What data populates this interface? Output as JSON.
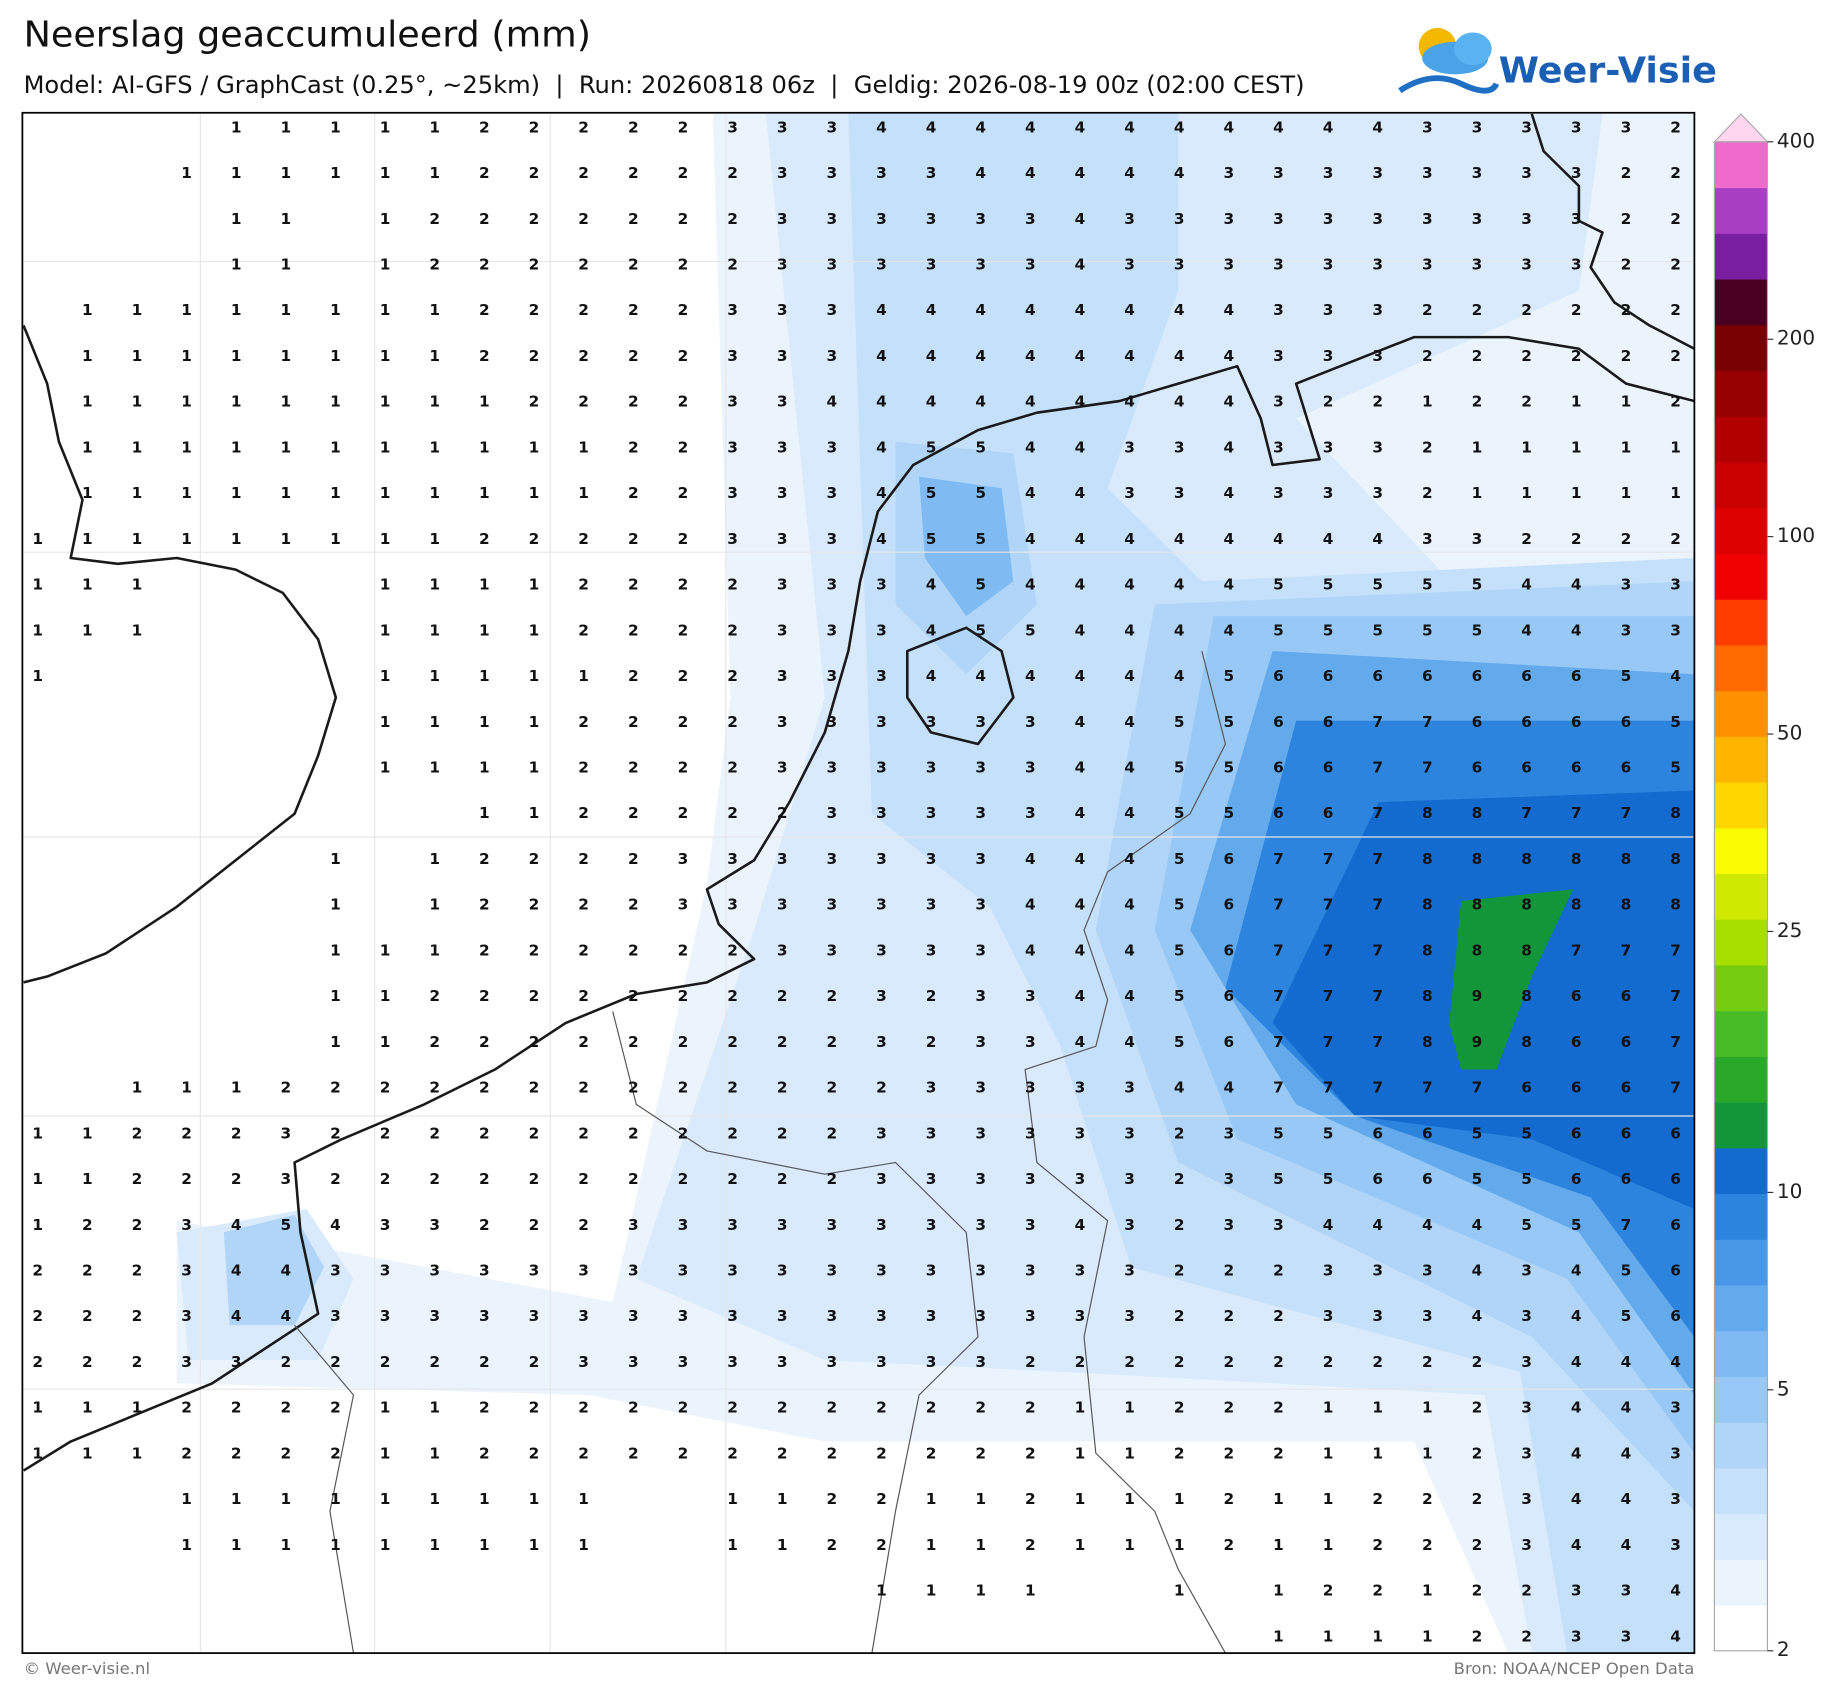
{
  "header": {
    "title": "Neerslag geaccumuleerd (mm)",
    "subtitle": "Model: AI-GFS / GraphCast (0.25°, ~25km)  |  Run: 20260818 06z  |  Geldig: 2026-08-19 00z (02:00 CEST)",
    "logo": "Weer-Visie"
  },
  "footer": {
    "left": "© Weer-visie.nl",
    "right": "Bron: NOAA/NCEP Open Data"
  },
  "colorbar": {
    "ticks": [
      2,
      5,
      10,
      25,
      50,
      100,
      200,
      400
    ],
    "lim": [
      2,
      400
    ],
    "log_scale": true,
    "colors": [
      "#ffffff",
      "#ebf4fd",
      "#d9eafc",
      "#c5e0fa",
      "#b0d5f8",
      "#98c9f6",
      "#7fbbf2",
      "#63aaed",
      "#4898e7",
      "#2c84de",
      "#136bd0",
      "#13963a",
      "#2aa82a",
      "#46bb26",
      "#74cc10",
      "#a8dd00",
      "#cfe900",
      "#fbfb00",
      "#ffd700",
      "#ffb400",
      "#ff9000",
      "#ff6a00",
      "#ff3c00",
      "#f00000",
      "#dd0000",
      "#c80000",
      "#b00000",
      "#960000",
      "#780000",
      "#4a0020",
      "#7a1ea0",
      "#a83ec2",
      "#ee6acd",
      "#ffd6f0"
    ]
  },
  "grid": {
    "rows": [
      [
        null,
        null,
        null,
        null,
        1,
        1,
        1,
        1,
        1,
        2,
        2,
        2,
        2,
        2,
        3,
        3,
        3,
        4,
        4,
        4,
        4,
        4,
        4,
        4,
        4,
        4,
        4,
        4,
        3,
        3,
        3,
        3,
        3,
        2
      ],
      [
        null,
        null,
        null,
        1,
        1,
        1,
        1,
        1,
        1,
        2,
        2,
        2,
        2,
        2,
        2,
        3,
        3,
        3,
        3,
        4,
        4,
        4,
        4,
        4,
        3,
        3,
        3,
        3,
        3,
        3,
        3,
        3,
        2,
        2
      ],
      [
        null,
        null,
        null,
        null,
        1,
        1,
        null,
        1,
        2,
        2,
        2,
        2,
        2,
        2,
        2,
        3,
        3,
        3,
        3,
        3,
        3,
        4,
        3,
        3,
        3,
        3,
        3,
        3,
        3,
        3,
        3,
        3,
        2,
        2
      ],
      [
        null,
        null,
        null,
        null,
        1,
        1,
        null,
        1,
        2,
        2,
        2,
        2,
        2,
        2,
        2,
        3,
        3,
        3,
        3,
        3,
        3,
        4,
        3,
        3,
        3,
        3,
        3,
        3,
        3,
        3,
        3,
        3,
        2,
        2
      ],
      [
        null,
        1,
        1,
        1,
        1,
        1,
        1,
        1,
        1,
        2,
        2,
        2,
        2,
        2,
        3,
        3,
        3,
        4,
        4,
        4,
        4,
        4,
        4,
        4,
        4,
        3,
        3,
        3,
        2,
        2,
        2,
        2,
        2,
        2
      ],
      [
        null,
        1,
        1,
        1,
        1,
        1,
        1,
        1,
        1,
        2,
        2,
        2,
        2,
        2,
        3,
        3,
        3,
        4,
        4,
        4,
        4,
        4,
        4,
        4,
        4,
        3,
        3,
        3,
        2,
        2,
        2,
        2,
        2,
        2
      ],
      [
        null,
        1,
        1,
        1,
        1,
        1,
        1,
        1,
        1,
        1,
        2,
        2,
        2,
        2,
        3,
        3,
        4,
        4,
        4,
        4,
        4,
        4,
        4,
        4,
        4,
        3,
        2,
        2,
        1,
        2,
        2,
        1,
        1,
        2
      ],
      [
        null,
        1,
        1,
        1,
        1,
        1,
        1,
        1,
        1,
        1,
        1,
        1,
        2,
        2,
        3,
        3,
        3,
        4,
        5,
        5,
        4,
        4,
        3,
        3,
        4,
        3,
        3,
        3,
        2,
        1,
        1,
        1,
        1,
        1
      ],
      [
        null,
        1,
        1,
        1,
        1,
        1,
        1,
        1,
        1,
        1,
        1,
        1,
        2,
        2,
        3,
        3,
        3,
        4,
        5,
        5,
        4,
        4,
        3,
        3,
        4,
        3,
        3,
        3,
        2,
        1,
        1,
        1,
        1,
        1
      ],
      [
        1,
        1,
        1,
        1,
        1,
        1,
        1,
        1,
        1,
        2,
        2,
        2,
        2,
        2,
        3,
        3,
        3,
        4,
        5,
        5,
        4,
        4,
        4,
        4,
        4,
        4,
        4,
        4,
        3,
        3,
        2,
        2,
        2,
        2
      ],
      [
        1,
        1,
        1,
        null,
        null,
        null,
        null,
        1,
        1,
        1,
        1,
        2,
        2,
        2,
        2,
        3,
        3,
        3,
        4,
        5,
        4,
        4,
        4,
        4,
        4,
        5,
        5,
        5,
        5,
        5,
        4,
        4,
        3,
        3
      ],
      [
        1,
        1,
        1,
        null,
        null,
        null,
        null,
        1,
        1,
        1,
        1,
        2,
        2,
        2,
        2,
        3,
        3,
        3,
        4,
        5,
        5,
        4,
        4,
        4,
        4,
        5,
        5,
        5,
        5,
        5,
        4,
        4,
        3,
        3
      ],
      [
        1,
        null,
        null,
        null,
        null,
        null,
        null,
        1,
        1,
        1,
        1,
        1,
        2,
        2,
        2,
        3,
        3,
        3,
        4,
        4,
        4,
        4,
        4,
        4,
        5,
        6,
        6,
        6,
        6,
        6,
        6,
        6,
        5,
        4
      ],
      [
        null,
        null,
        null,
        null,
        null,
        null,
        null,
        1,
        1,
        1,
        1,
        2,
        2,
        2,
        2,
        3,
        3,
        3,
        3,
        3,
        3,
        4,
        4,
        5,
        5,
        6,
        6,
        7,
        7,
        6,
        6,
        6,
        6,
        5
      ],
      [
        null,
        null,
        null,
        null,
        null,
        null,
        null,
        1,
        1,
        1,
        1,
        2,
        2,
        2,
        2,
        3,
        3,
        3,
        3,
        3,
        3,
        4,
        4,
        5,
        5,
        6,
        6,
        7,
        7,
        6,
        6,
        6,
        6,
        5
      ],
      [
        null,
        null,
        null,
        null,
        null,
        null,
        null,
        null,
        null,
        1,
        1,
        2,
        2,
        2,
        2,
        2,
        3,
        3,
        3,
        3,
        3,
        4,
        4,
        5,
        5,
        6,
        6,
        7,
        8,
        8,
        7,
        7,
        7,
        8
      ],
      [
        null,
        null,
        null,
        null,
        null,
        null,
        1,
        null,
        1,
        2,
        2,
        2,
        2,
        3,
        3,
        3,
        3,
        3,
        3,
        3,
        4,
        4,
        4,
        5,
        6,
        7,
        7,
        7,
        8,
        8,
        8,
        8,
        8,
        8
      ],
      [
        null,
        null,
        null,
        null,
        null,
        null,
        1,
        null,
        1,
        2,
        2,
        2,
        2,
        3,
        3,
        3,
        3,
        3,
        3,
        3,
        4,
        4,
        4,
        5,
        6,
        7,
        7,
        7,
        8,
        8,
        8,
        8,
        8,
        8
      ],
      [
        null,
        null,
        null,
        null,
        null,
        null,
        1,
        1,
        1,
        2,
        2,
        2,
        2,
        2,
        2,
        3,
        3,
        3,
        3,
        3,
        4,
        4,
        4,
        5,
        6,
        7,
        7,
        7,
        8,
        8,
        8,
        7,
        7,
        7
      ],
      [
        null,
        null,
        null,
        null,
        null,
        null,
        1,
        1,
        2,
        2,
        2,
        2,
        2,
        2,
        2,
        2,
        2,
        3,
        2,
        3,
        3,
        4,
        4,
        5,
        6,
        7,
        7,
        7,
        8,
        9,
        8,
        6,
        6,
        7
      ],
      [
        null,
        null,
        null,
        null,
        null,
        null,
        1,
        1,
        2,
        2,
        2,
        2,
        2,
        2,
        2,
        2,
        2,
        3,
        2,
        3,
        3,
        4,
        4,
        5,
        6,
        7,
        7,
        7,
        8,
        9,
        8,
        6,
        6,
        7
      ],
      [
        null,
        null,
        1,
        1,
        1,
        2,
        2,
        2,
        2,
        2,
        2,
        2,
        2,
        2,
        2,
        2,
        2,
        2,
        3,
        3,
        3,
        3,
        3,
        4,
        4,
        7,
        7,
        7,
        7,
        7,
        6,
        6,
        6,
        7
      ],
      [
        1,
        1,
        2,
        2,
        2,
        3,
        2,
        2,
        2,
        2,
        2,
        2,
        2,
        2,
        2,
        2,
        2,
        3,
        3,
        3,
        3,
        3,
        3,
        2,
        3,
        5,
        5,
        6,
        6,
        5,
        5,
        6,
        6,
        6
      ],
      [
        1,
        1,
        2,
        2,
        2,
        3,
        2,
        2,
        2,
        2,
        2,
        2,
        2,
        2,
        2,
        2,
        2,
        3,
        3,
        3,
        3,
        3,
        3,
        2,
        3,
        5,
        5,
        6,
        6,
        5,
        5,
        6,
        6,
        6
      ],
      [
        1,
        2,
        2,
        3,
        4,
        5,
        4,
        3,
        3,
        2,
        2,
        2,
        3,
        3,
        3,
        3,
        3,
        3,
        3,
        3,
        3,
        4,
        3,
        2,
        3,
        3,
        4,
        4,
        4,
        4,
        5,
        5,
        7,
        6
      ],
      [
        2,
        2,
        2,
        3,
        4,
        4,
        3,
        3,
        3,
        3,
        3,
        3,
        3,
        3,
        3,
        3,
        3,
        3,
        3,
        3,
        3,
        3,
        3,
        2,
        2,
        2,
        3,
        3,
        3,
        4,
        3,
        4,
        5,
        6
      ],
      [
        2,
        2,
        2,
        3,
        4,
        4,
        3,
        3,
        3,
        3,
        3,
        3,
        3,
        3,
        3,
        3,
        3,
        3,
        3,
        3,
        3,
        3,
        3,
        2,
        2,
        2,
        3,
        3,
        3,
        4,
        3,
        4,
        5,
        6
      ],
      [
        2,
        2,
        2,
        3,
        3,
        2,
        2,
        2,
        2,
        2,
        2,
        3,
        3,
        3,
        3,
        3,
        3,
        3,
        3,
        3,
        2,
        2,
        2,
        2,
        2,
        2,
        2,
        2,
        2,
        2,
        3,
        4,
        4,
        4
      ],
      [
        1,
        1,
        1,
        2,
        2,
        2,
        2,
        1,
        1,
        2,
        2,
        2,
        2,
        2,
        2,
        2,
        2,
        2,
        2,
        2,
        2,
        1,
        1,
        2,
        2,
        2,
        1,
        1,
        1,
        2,
        3,
        4,
        4,
        3
      ],
      [
        1,
        1,
        1,
        2,
        2,
        2,
        2,
        1,
        1,
        2,
        2,
        2,
        2,
        2,
        2,
        2,
        2,
        2,
        2,
        2,
        2,
        1,
        1,
        2,
        2,
        2,
        1,
        1,
        1,
        2,
        3,
        4,
        4,
        3
      ],
      [
        null,
        null,
        null,
        1,
        1,
        1,
        1,
        1,
        1,
        1,
        1,
        1,
        null,
        null,
        1,
        1,
        2,
        2,
        1,
        1,
        2,
        1,
        1,
        1,
        2,
        1,
        1,
        2,
        2,
        2,
        3,
        4,
        4,
        3
      ],
      [
        null,
        null,
        null,
        1,
        1,
        1,
        1,
        1,
        1,
        1,
        1,
        1,
        null,
        null,
        1,
        1,
        2,
        2,
        1,
        1,
        2,
        1,
        1,
        1,
        2,
        1,
        1,
        2,
        2,
        2,
        3,
        4,
        4,
        3
      ],
      [
        null,
        null,
        null,
        null,
        null,
        null,
        null,
        null,
        null,
        null,
        null,
        null,
        null,
        null,
        null,
        null,
        null,
        1,
        1,
        1,
        1,
        null,
        null,
        1,
        null,
        1,
        2,
        2,
        1,
        2,
        2,
        3,
        3,
        4
      ],
      [
        null,
        null,
        null,
        null,
        null,
        null,
        null,
        null,
        null,
        null,
        null,
        null,
        null,
        null,
        null,
        null,
        null,
        null,
        null,
        null,
        null,
        null,
        null,
        null,
        null,
        1,
        1,
        1,
        1,
        2,
        2,
        3,
        3,
        4
      ]
    ]
  }
}
